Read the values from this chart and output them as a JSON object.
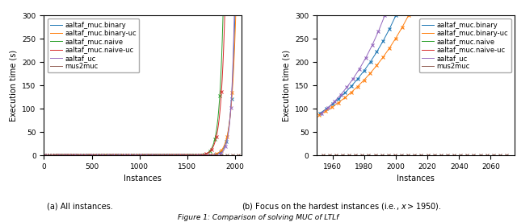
{
  "series": [
    {
      "label": "aaltaf_muc.binary",
      "color": "#1f77b4",
      "x_end": 2000,
      "steepness": 0.025
    },
    {
      "label": "aaltaf_muc.binary-uc",
      "color": "#ff7f0e",
      "x_end": 2008,
      "steepness": 0.022
    },
    {
      "label": "aaltaf_muc.naive",
      "color": "#2ca02c",
      "x_end": 1875,
      "steepness": 0.025
    },
    {
      "label": "aaltaf_muc.naive-uc",
      "color": "#d62728",
      "x_end": 1893,
      "steepness": 0.023
    },
    {
      "label": "aaltaf_uc",
      "color": "#9467bd",
      "x_end": 1993,
      "steepness": 0.03
    },
    {
      "label": "mus2muc",
      "color": "#8c564b",
      "x_end": 2070,
      "steepness": 0.0
    }
  ],
  "left_plot": {
    "xlim": [
      0,
      2070
    ],
    "ylim": [
      0,
      300
    ],
    "xlabel": "Instances",
    "ylabel": "Execution time (s)",
    "xticks": [
      0,
      500,
      1000,
      1500,
      2000
    ],
    "yticks": [
      0,
      50,
      100,
      150,
      200,
      250,
      300
    ]
  },
  "right_plot": {
    "xlim": [
      1950,
      2075
    ],
    "ylim": [
      0,
      300
    ],
    "xlabel": "Instances",
    "ylabel": "Execution time (s)",
    "yticks": [
      0,
      50,
      100,
      150,
      200,
      250,
      300
    ]
  },
  "caption_left": "(a) All instances.",
  "caption_right": "(b) Focus on the hardest instances (i.e., $x > 1950$).",
  "label_fontsize": 7,
  "tick_fontsize": 6.5,
  "legend_fontsize": 6.0
}
